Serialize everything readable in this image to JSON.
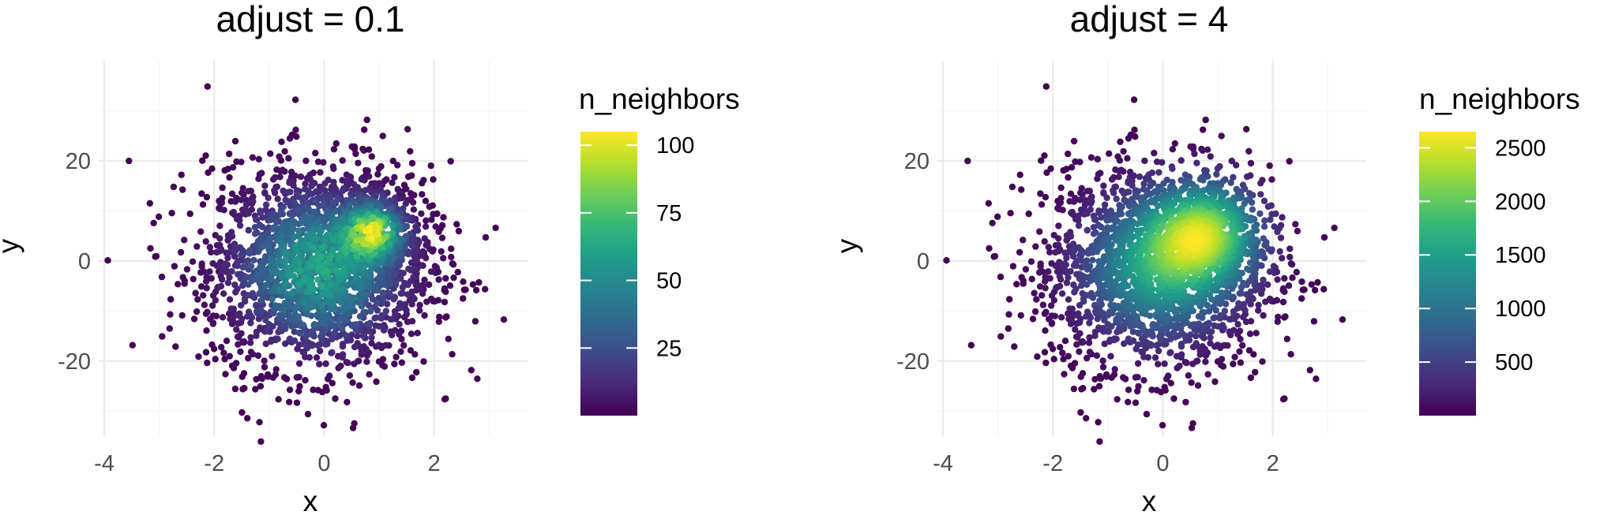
{
  "chart_data": [
    {
      "type": "scatter",
      "title": "adjust = 0.1",
      "xlabel": "x",
      "ylabel": "y",
      "xlim": [
        -4.1,
        3.7
      ],
      "ylim": [
        -35,
        40
      ],
      "x_ticks": [
        -4,
        -2,
        0,
        2
      ],
      "x_tick_labels": [
        "-4",
        "-2",
        "0",
        "2"
      ],
      "y_ticks": [
        -20,
        0,
        20
      ],
      "y_tick_labels": [
        "-20",
        "0",
        "20"
      ],
      "grid": true,
      "color_variable": "n_neighbors",
      "colorscale": "viridis",
      "color_range": [
        0,
        105
      ],
      "color_breaks": [
        25,
        50,
        75,
        100
      ],
      "color_break_labels": [
        "25",
        "50",
        "75",
        "100"
      ],
      "legend_position": "right",
      "density_peak": {
        "x": 0.9,
        "y": 6,
        "n_neighbors": 105
      }
    },
    {
      "type": "scatter",
      "title": "adjust = 4",
      "xlabel": "x",
      "ylabel": "y",
      "xlim": [
        -4.1,
        3.7
      ],
      "ylim": [
        -35,
        40
      ],
      "x_ticks": [
        -4,
        -2,
        0,
        2
      ],
      "x_tick_labels": [
        "-4",
        "-2",
        "0",
        "2"
      ],
      "y_ticks": [
        -20,
        0,
        20
      ],
      "y_tick_labels": [
        "-20",
        "0",
        "20"
      ],
      "grid": true,
      "color_variable": "n_neighbors",
      "colorscale": "viridis",
      "color_range": [
        0,
        2650
      ],
      "color_breaks": [
        500,
        1000,
        1500,
        2000,
        2500
      ],
      "color_break_labels": [
        "500",
        "1000",
        "1500",
        "2000",
        "2500"
      ],
      "legend_position": "right",
      "density_peak": {
        "x": 0.8,
        "y": 6,
        "n_neighbors": 2600
      }
    }
  ],
  "colors": {
    "viridis": [
      "#440154",
      "#482878",
      "#3e4a89",
      "#31688e",
      "#26828e",
      "#1f9e89",
      "#35b779",
      "#6ece58",
      "#b5de2b",
      "#fde725"
    ],
    "grid": "#ebebeb",
    "tick_text": "#4d4d4d"
  }
}
